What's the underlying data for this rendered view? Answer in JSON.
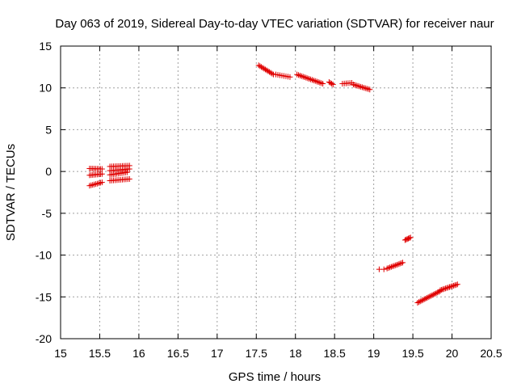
{
  "chart_data": {
    "type": "scatter",
    "title": "Day 063 of 2019, Sidereal Day-to-day VTEC variation (SDTVAR) for receiver naur",
    "xlabel": "GPS time / hours",
    "ylabel": "SDTVAR / TECUs",
    "xlim": [
      15,
      20.5
    ],
    "ylim": [
      -20,
      15
    ],
    "grid": true,
    "x_ticks": [
      "15",
      "15.5",
      "16",
      "16.5",
      "17",
      "17.5",
      "18",
      "18.5",
      "19",
      "19.5",
      "20",
      "20.5"
    ],
    "y_ticks": [
      "-20",
      "-15",
      "-10",
      "-5",
      "0",
      "5",
      "10",
      "15"
    ],
    "series": [
      {
        "name": "SDTVAR",
        "color": "#e00000",
        "marker": "plus",
        "segments": [
          {
            "x_start": 15.37,
            "x_end": 15.53,
            "y_start": 0.35,
            "y_end": 0.3,
            "count": 9
          },
          {
            "x_start": 15.37,
            "x_end": 15.53,
            "y_start": -0.45,
            "y_end": -0.3,
            "count": 9
          },
          {
            "x_start": 15.37,
            "x_end": 15.53,
            "y_start": -1.7,
            "y_end": -1.3,
            "count": 9
          },
          {
            "x_start": 15.63,
            "x_end": 15.88,
            "y_start": 0.6,
            "y_end": 0.7,
            "count": 12
          },
          {
            "x_start": 15.63,
            "x_end": 15.88,
            "y_start": 0.1,
            "y_end": 0.3,
            "count": 12
          },
          {
            "x_start": 15.63,
            "x_end": 15.85,
            "y_start": -0.4,
            "y_end": -0.1,
            "count": 11
          },
          {
            "x_start": 15.63,
            "x_end": 15.88,
            "y_start": -1.1,
            "y_end": -0.9,
            "count": 12
          },
          {
            "x_start": 17.53,
            "x_end": 17.72,
            "y_start": 12.7,
            "y_end": 11.6,
            "count": 12
          },
          {
            "x_start": 17.75,
            "x_end": 17.93,
            "y_start": 11.6,
            "y_end": 11.3,
            "count": 8
          },
          {
            "x_start": 18.02,
            "x_end": 18.35,
            "y_start": 11.6,
            "y_end": 10.5,
            "count": 18
          },
          {
            "x_start": 18.43,
            "x_end": 18.48,
            "y_start": 10.7,
            "y_end": 10.4,
            "count": 4
          },
          {
            "x_start": 18.6,
            "x_end": 18.72,
            "y_start": 10.5,
            "y_end": 10.6,
            "count": 6
          },
          {
            "x_start": 18.74,
            "x_end": 18.95,
            "y_start": 10.4,
            "y_end": 9.8,
            "count": 12
          },
          {
            "x_start": 19.07,
            "x_end": 19.13,
            "y_start": -11.7,
            "y_end": -11.7,
            "count": 2
          },
          {
            "x_start": 19.17,
            "x_end": 19.37,
            "y_start": -11.6,
            "y_end": -10.9,
            "count": 12
          },
          {
            "x_start": 19.4,
            "x_end": 19.47,
            "y_start": -8.2,
            "y_end": -7.9,
            "count": 6
          },
          {
            "x_start": 19.56,
            "x_end": 19.85,
            "y_start": -15.7,
            "y_end": -14.3,
            "count": 18
          },
          {
            "x_start": 19.85,
            "x_end": 20.07,
            "y_start": -14.2,
            "y_end": -13.5,
            "count": 14
          }
        ]
      }
    ]
  }
}
